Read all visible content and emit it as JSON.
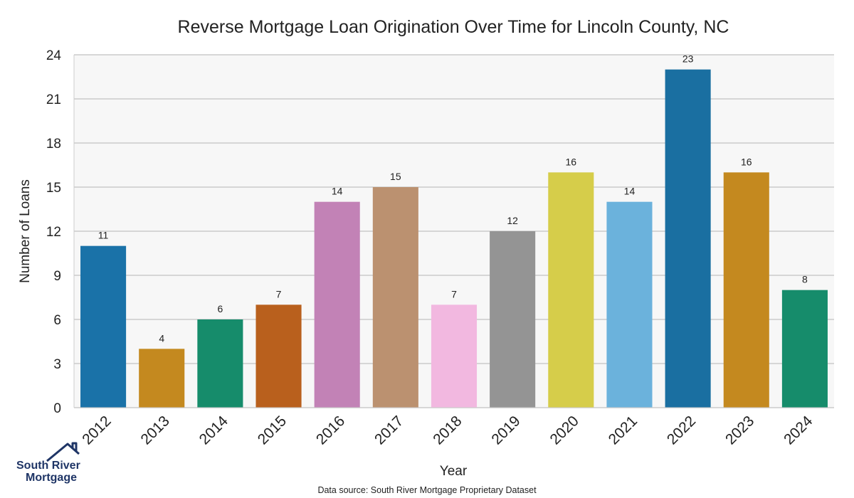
{
  "chart_data": {
    "type": "bar",
    "title": "Reverse Mortgage Loan Origination Over Time for Lincoln County, NC",
    "xlabel": "Year",
    "ylabel": "Number of Loans",
    "categories": [
      "2012",
      "2013",
      "2014",
      "2015",
      "2016",
      "2017",
      "2018",
      "2019",
      "2020",
      "2021",
      "2022",
      "2023",
      "2024"
    ],
    "values": [
      11,
      4,
      6,
      7,
      14,
      15,
      7,
      12,
      16,
      14,
      23,
      16,
      8
    ],
    "colors": [
      "#1a72a8",
      "#c4891f",
      "#168c6b",
      "#b9601d",
      "#c282b6",
      "#bb9170",
      "#f2b8e0",
      "#949494",
      "#d6cd4a",
      "#6bb2dc",
      "#1a6fa1",
      "#c4891f",
      "#168c6b"
    ],
    "ylim": [
      0,
      24
    ],
    "yticks": [
      0,
      3,
      6,
      9,
      12,
      15,
      18,
      21,
      24
    ],
    "grid": true,
    "background": "#f7f7f7",
    "source_note": "Data source: South River Mortgage Proprietary Dataset"
  },
  "logo": {
    "line1": "South River",
    "line2": "Mortgage"
  }
}
